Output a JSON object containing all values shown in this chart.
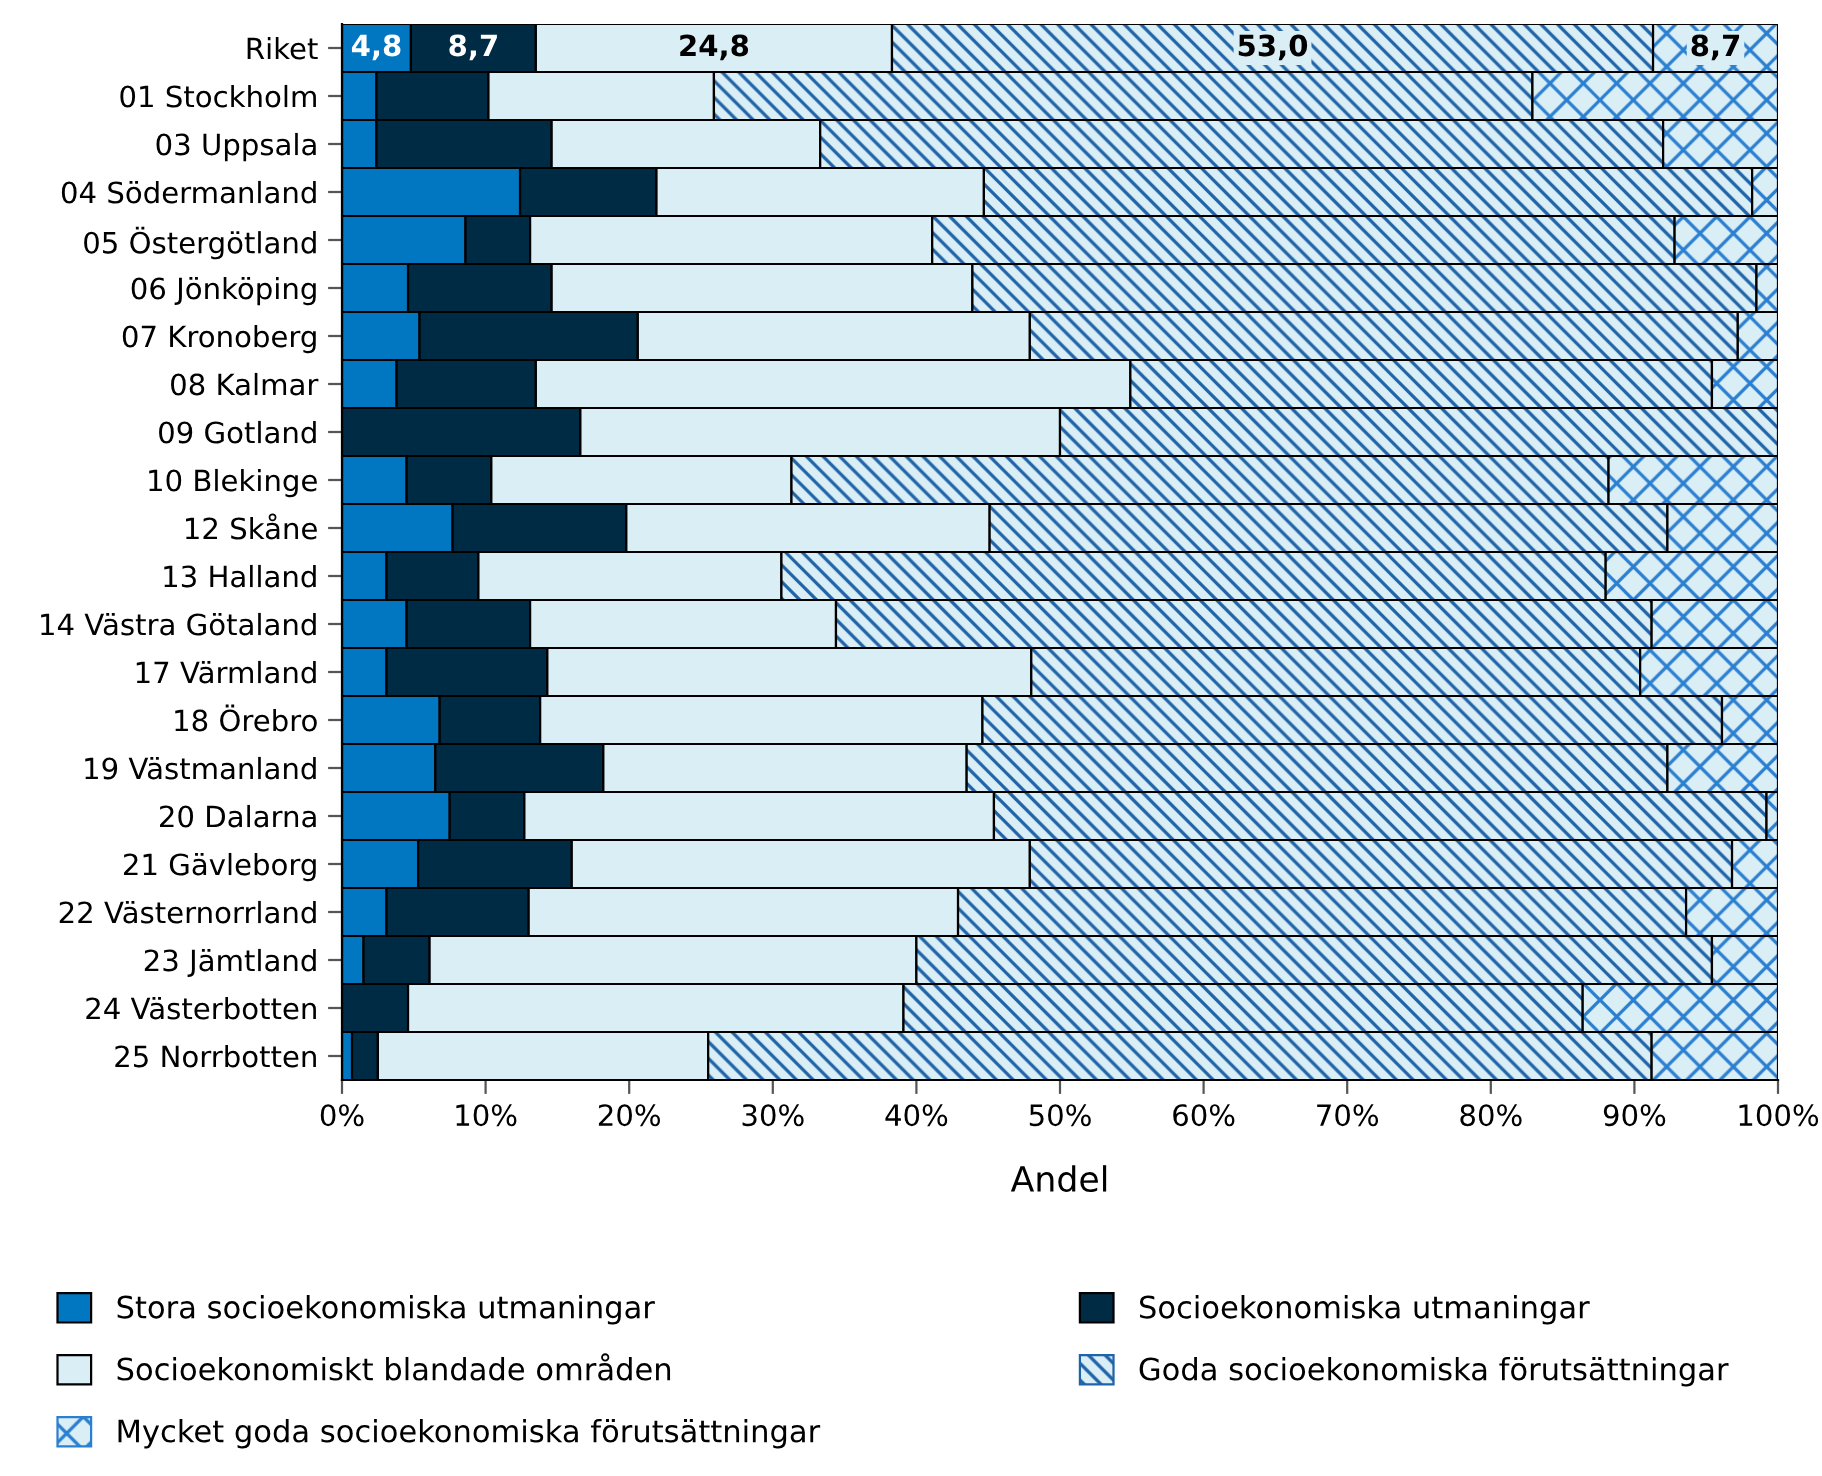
{
  "chart_data": {
    "type": "bar",
    "orientation": "horizontal",
    "stacked": true,
    "xlabel": "Andel",
    "legend": "bottom",
    "grid": false,
    "categories": [
      "Riket",
      "01 Stockholm",
      "03 Uppsala",
      "04 Södermanland",
      "05 Östergötland",
      "06 Jönköping",
      "07 Kronoberg",
      "08 Kalmar",
      "09 Gotland",
      "10 Blekinge",
      "12 Skåne",
      "13 Halland",
      "14 Västra Götaland",
      "17 Värmland",
      "18 Örebro",
      "19 Västmanland",
      "20 Dalarna",
      "21 Gävleborg",
      "22 Västernorrland",
      "23 Jämtland",
      "24 Västerbotten",
      "25 Norrbotten"
    ],
    "xlim": [
      0,
      100
    ],
    "xticks": [
      {
        "value": 0,
        "label": "0%"
      },
      {
        "value": 10,
        "label": "10%"
      },
      {
        "value": 20,
        "label": "20%"
      },
      {
        "value": 30,
        "label": "30%"
      },
      {
        "value": 40,
        "label": "40%"
      },
      {
        "value": 50,
        "label": "50%"
      },
      {
        "value": 60,
        "label": "60%"
      },
      {
        "value": 70,
        "label": "70%"
      },
      {
        "value": 80,
        "label": "80%"
      },
      {
        "value": 90,
        "label": "90%"
      },
      {
        "value": 100,
        "label": "100%"
      }
    ],
    "series": [
      {
        "name": "Stora socioekonomiska utmaningar",
        "color": "#0077c0",
        "values": [
          4.8,
          2.4,
          2.4,
          12.4,
          8.6,
          4.6,
          5.4,
          3.8,
          0,
          4.5,
          7.7,
          3.1,
          4.5,
          3.1,
          6.8,
          6.5,
          7.5,
          5.3,
          3.1,
          1.5,
          0,
          0.7
        ],
        "value_labels": [
          "4,8",
          null,
          null,
          null,
          null,
          null,
          null,
          null,
          null,
          null,
          null,
          null,
          null,
          null,
          null,
          null,
          null,
          null,
          null,
          null,
          null,
          null
        ]
      },
      {
        "name": "Socioekonomiska utmaningar",
        "color": "#002b45",
        "values": [
          8.7,
          7.8,
          12.2,
          9.5,
          4.5,
          10.0,
          15.2,
          9.7,
          16.6,
          5.9,
          12.1,
          6.4,
          8.6,
          11.2,
          7.0,
          11.7,
          5.2,
          10.7,
          9.9,
          4.6,
          4.6,
          1.8
        ],
        "value_labels": [
          "8,7",
          null,
          null,
          null,
          null,
          null,
          null,
          null,
          null,
          null,
          null,
          null,
          null,
          null,
          null,
          null,
          null,
          null,
          null,
          null,
          null,
          null
        ]
      },
      {
        "name": "Socioekonomiskt blandade områden",
        "color": "#daeef6",
        "values": [
          24.8,
          15.7,
          18.7,
          22.8,
          28.0,
          29.3,
          27.3,
          41.4,
          33.4,
          20.9,
          25.3,
          21.1,
          21.3,
          33.7,
          30.8,
          25.3,
          32.7,
          31.9,
          29.9,
          33.9,
          34.5,
          23.0
        ],
        "value_labels": [
          "24,8",
          null,
          null,
          null,
          null,
          null,
          null,
          null,
          null,
          null,
          null,
          null,
          null,
          null,
          null,
          null,
          null,
          null,
          null,
          null,
          null,
          null
        ]
      },
      {
        "name": "Goda socioekonomiska förutsättningar",
        "color": "#1f63a8",
        "values": [
          53.0,
          57.0,
          58.7,
          53.5,
          51.7,
          54.6,
          49.3,
          40.5,
          50.0,
          56.9,
          47.2,
          57.4,
          56.8,
          42.4,
          51.5,
          48.8,
          53.8,
          48.9,
          50.7,
          55.4,
          47.3,
          65.7
        ],
        "value_labels": [
          "53,0",
          null,
          null,
          null,
          null,
          null,
          null,
          null,
          null,
          null,
          null,
          null,
          null,
          null,
          null,
          null,
          null,
          null,
          null,
          null,
          null,
          null
        ]
      },
      {
        "name": "Mycket goda socioekonomiska förutsättningar",
        "color": "#2b7fd0",
        "values": [
          8.7,
          17.1,
          8.0,
          1.8,
          7.2,
          1.5,
          2.8,
          4.6,
          0,
          11.8,
          7.7,
          12.0,
          8.8,
          9.6,
          3.9,
          7.7,
          0.8,
          3.2,
          6.4,
          4.6,
          13.6,
          8.8
        ],
        "value_labels": [
          "8,7",
          null,
          null,
          null,
          null,
          null,
          null,
          null,
          null,
          null,
          null,
          null,
          null,
          null,
          null,
          null,
          null,
          null,
          null,
          null,
          null,
          null
        ]
      }
    ]
  }
}
